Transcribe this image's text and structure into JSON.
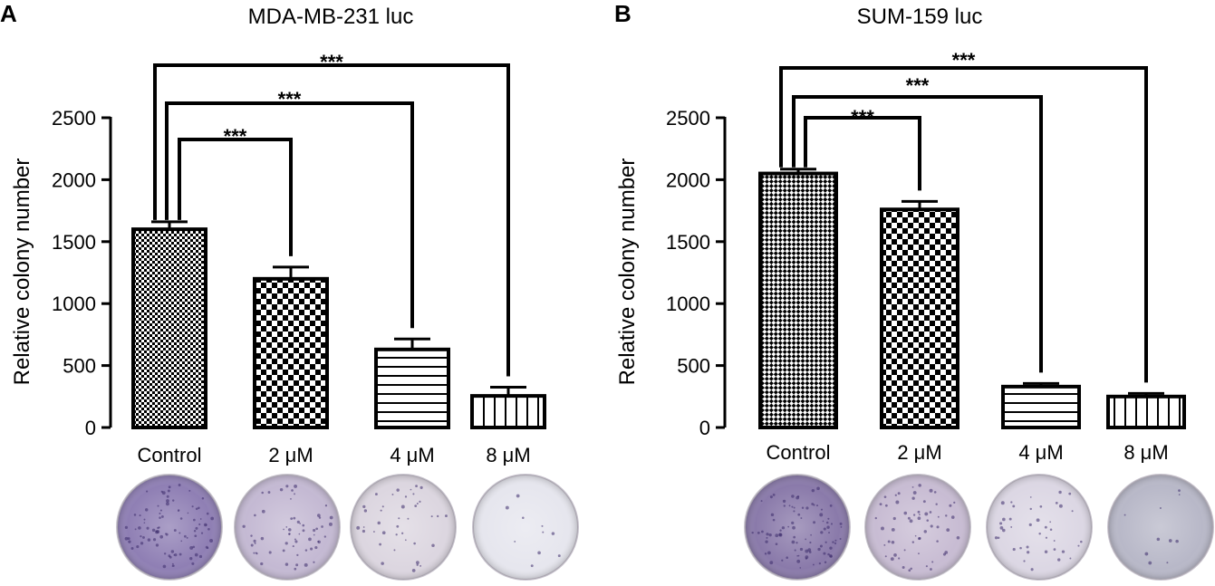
{
  "panels": [
    {
      "letter": "A",
      "dish_colors": [
        "#8f7fb4",
        "#c4b9d3",
        "#dcd6e0",
        "#e6e6ee"
      ],
      "chart_data": {
        "type": "bar",
        "title": "MDA-MB-231 luc",
        "ylabel": "Relative colony number",
        "xlabel": "",
        "ylim": [
          0,
          2500
        ],
        "yticks": [
          0,
          500,
          1000,
          1500,
          2000,
          2500
        ],
        "categories": [
          "Control",
          "2 μM",
          "4 μM",
          "8 μM"
        ],
        "values": [
          1600,
          1200,
          630,
          255
        ],
        "errors": [
          60,
          95,
          85,
          70
        ],
        "patterns": [
          "fine-check",
          "check",
          "horizontal-lines",
          "vertical-lines"
        ],
        "significance": [
          {
            "from": 0,
            "to": 1,
            "label": "***"
          },
          {
            "from": 0,
            "to": 2,
            "label": "***"
          },
          {
            "from": 0,
            "to": 3,
            "label": "***"
          }
        ]
      }
    },
    {
      "letter": "B",
      "dish_colors": [
        "#8a7aaa",
        "#c8bcd3",
        "#dcd7e4",
        "#b8b8c8"
      ],
      "chart_data": {
        "type": "bar",
        "title": "SUM-159 luc",
        "ylabel": "Relative colony number",
        "xlabel": "",
        "ylim": [
          0,
          2500
        ],
        "yticks": [
          0,
          500,
          1000,
          1500,
          2000,
          2500
        ],
        "categories": [
          "Control",
          "2 μM",
          "4 μM",
          "8 μM"
        ],
        "values": [
          2050,
          1760,
          330,
          250
        ],
        "errors": [
          35,
          65,
          25,
          25
        ],
        "patterns": [
          "diamond-check",
          "check",
          "horizontal-lines",
          "vertical-lines"
        ],
        "significance": [
          {
            "from": 0,
            "to": 1,
            "label": "***"
          },
          {
            "from": 0,
            "to": 2,
            "label": "***"
          },
          {
            "from": 0,
            "to": 3,
            "label": "***"
          }
        ]
      }
    }
  ]
}
